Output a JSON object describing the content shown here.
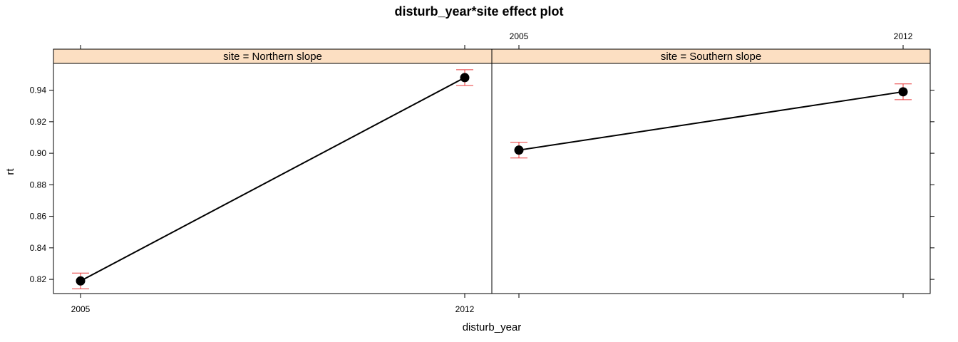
{
  "chart_data": {
    "type": "line",
    "title": "disturb_year*site effect plot",
    "xlabel": "disturb_year",
    "ylabel": "rt",
    "x": [
      2005,
      2012
    ],
    "x_tick_labels": [
      "2005",
      "2012"
    ],
    "ylim": [
      0.811,
      0.957
    ],
    "y_ticks": [
      0.82,
      0.84,
      0.86,
      0.88,
      0.9,
      0.92,
      0.94
    ],
    "y_tick_labels": [
      "0.82",
      "0.84",
      "0.86",
      "0.88",
      "0.90",
      "0.92",
      "0.94"
    ],
    "grid": false,
    "strip_color": "#fcdfc2",
    "errorbar_color": "#e8393a",
    "line_color": "#000000",
    "panels": [
      {
        "strip": "site = Northern slope",
        "values": [
          0.819,
          0.948
        ],
        "lower": [
          0.814,
          0.943
        ],
        "upper": [
          0.824,
          0.953
        ]
      },
      {
        "strip": "site = Southern slope",
        "values": [
          0.902,
          0.939
        ],
        "lower": [
          0.897,
          0.934
        ],
        "upper": [
          0.907,
          0.944
        ]
      }
    ]
  }
}
